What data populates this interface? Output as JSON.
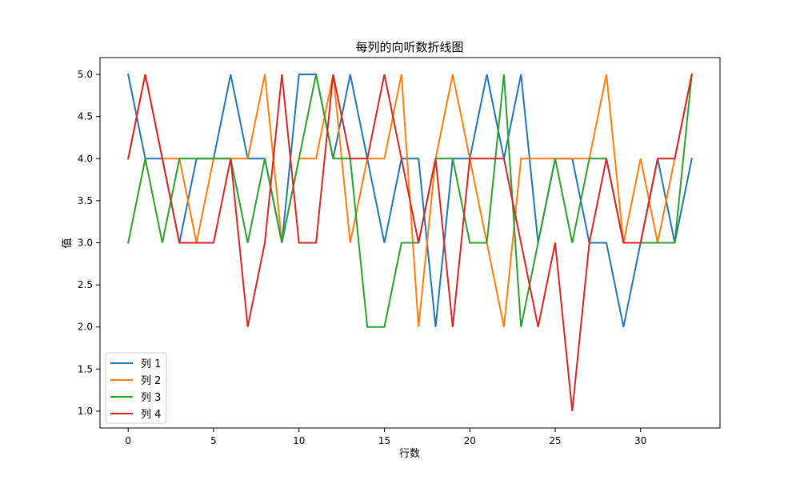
{
  "chart_data": {
    "type": "line",
    "title": "每列的向听数折线图",
    "xlabel": "行数",
    "ylabel": "值",
    "x": [
      0,
      1,
      2,
      3,
      4,
      5,
      6,
      7,
      8,
      9,
      10,
      11,
      12,
      13,
      14,
      15,
      16,
      17,
      18,
      19,
      20,
      21,
      22,
      23,
      24,
      25,
      26,
      27,
      28,
      29,
      30,
      31,
      32,
      33
    ],
    "xlim": [
      -1.65,
      34.65
    ],
    "ylim": [
      0.8,
      5.2
    ],
    "xticks": [
      0,
      5,
      10,
      15,
      20,
      25,
      30
    ],
    "yticks": [
      1.0,
      1.5,
      2.0,
      2.5,
      3.0,
      3.5,
      4.0,
      4.5,
      5.0
    ],
    "xtick_labels": [
      "0",
      "5",
      "10",
      "15",
      "20",
      "25",
      "30"
    ],
    "ytick_labels": [
      "1.0",
      "1.5",
      "2.0",
      "2.5",
      "3.0",
      "3.5",
      "4.0",
      "4.5",
      "5.0"
    ],
    "grid": false,
    "legend_position": "lower-left",
    "series": [
      {
        "name": "列 1",
        "color": "#1f77b4",
        "values": [
          5,
          4,
          4,
          3,
          4,
          4,
          5,
          4,
          4,
          3,
          5,
          5,
          4,
          5,
          4,
          3,
          4,
          4,
          2,
          4,
          4,
          5,
          4,
          5,
          3,
          4,
          4,
          3,
          3,
          2,
          3,
          4,
          3,
          4
        ]
      },
      {
        "name": "列 2",
        "color": "#ff7f0e",
        "values": [
          4,
          5,
          4,
          4,
          3,
          4,
          4,
          4,
          5,
          3,
          4,
          4,
          5,
          3,
          4,
          4,
          5,
          2,
          4,
          5,
          4,
          3,
          2,
          4,
          4,
          4,
          4,
          4,
          5,
          3,
          4,
          3,
          4,
          5
        ]
      },
      {
        "name": "列 3",
        "color": "#2ca02c",
        "values": [
          3,
          4,
          3,
          4,
          4,
          4,
          4,
          3,
          4,
          3,
          4,
          5,
          4,
          4,
          2,
          2,
          3,
          3,
          4,
          4,
          3,
          3,
          5,
          2,
          3,
          4,
          3,
          4,
          4,
          3,
          3,
          3,
          3,
          5
        ]
      },
      {
        "name": "列 4",
        "color": "#d62728",
        "values": [
          4,
          5,
          4,
          3,
          3,
          3,
          4,
          2,
          3,
          5,
          3,
          3,
          5,
          4,
          4,
          5,
          4,
          3,
          4,
          2,
          4,
          4,
          4,
          3,
          2,
          3,
          1,
          3,
          4,
          3,
          3,
          4,
          4,
          5
        ]
      }
    ]
  }
}
